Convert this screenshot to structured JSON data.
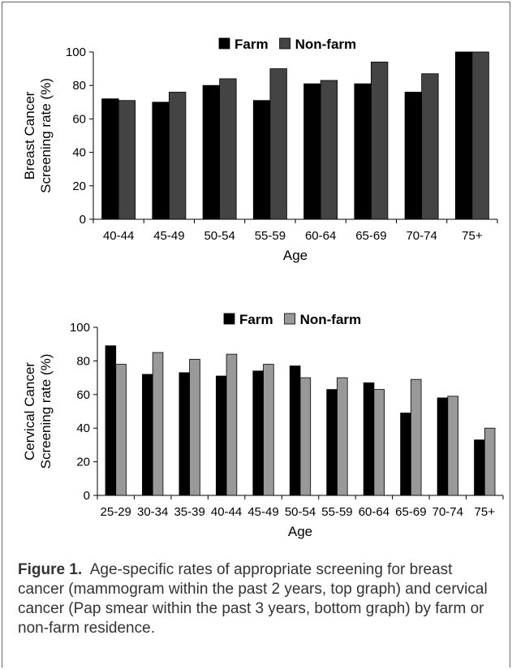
{
  "chart_data": [
    {
      "type": "bar",
      "categories": [
        "40-44",
        "45-49",
        "50-54",
        "55-59",
        "60-64",
        "65-69",
        "70-74",
        "75+"
      ],
      "series": [
        {
          "name": "Farm",
          "values": [
            72,
            70,
            80,
            71,
            81,
            81,
            76,
            100
          ],
          "color": "#000000"
        },
        {
          "name": "Non-farm",
          "values": [
            71,
            76,
            84,
            90,
            83,
            94,
            87,
            100
          ],
          "color": "#444444"
        }
      ],
      "xlabel": "Age",
      "ylabel_lines": [
        "Breast Cancer",
        "Screening rate (%)"
      ],
      "ylim": [
        0,
        100
      ],
      "yticks": [
        0,
        20,
        40,
        60,
        80,
        100
      ],
      "legend_position": "top"
    },
    {
      "type": "bar",
      "categories": [
        "25-29",
        "30-34",
        "35-39",
        "40-44",
        "45-49",
        "50-54",
        "55-59",
        "60-64",
        "65-69",
        "70-74",
        "75+"
      ],
      "series": [
        {
          "name": "Farm",
          "values": [
            89,
            72,
            73,
            71,
            74,
            77,
            63,
            67,
            49,
            58,
            33
          ],
          "color": "#000000"
        },
        {
          "name": "Non-farm",
          "values": [
            78,
            85,
            81,
            84,
            78,
            70,
            70,
            63,
            69,
            59,
            40
          ],
          "color": "#999999"
        }
      ],
      "xlabel": "Age",
      "ylabel_lines": [
        "Cervical Cancer",
        "Screening rate (%)"
      ],
      "ylim": [
        0,
        100
      ],
      "yticks": [
        0,
        20,
        40,
        60,
        80,
        100
      ],
      "legend_position": "top"
    }
  ],
  "caption": {
    "label": "Figure 1.",
    "text": "Age-specific rates of appropriate screening for breast cancer (mammogram within the past 2 years, top graph) and cervical cancer (Pap smear within the past 3 years, bottom graph) by farm or non-farm residence."
  }
}
